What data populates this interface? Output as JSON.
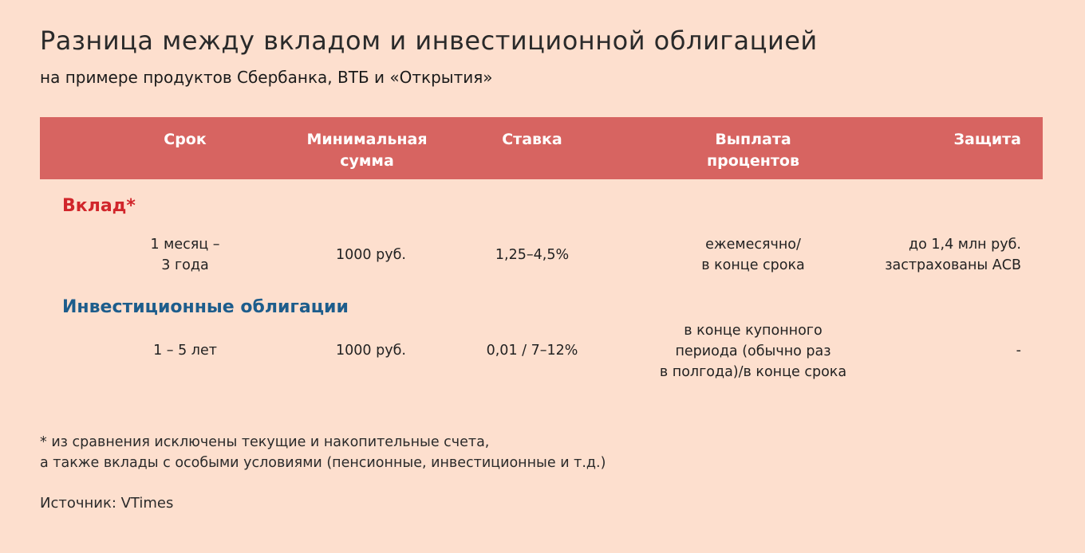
{
  "title": "Разница между вкладом и инвестиционной облигацией",
  "subtitle": "на примере продуктов Сбербанка, ВТБ и «Открытия»",
  "colors": {
    "background": "#fddfce",
    "header": "#d76461",
    "deposit_label": "#d1262b",
    "bonds_label": "#1d5d8c"
  },
  "table": {
    "headers": [
      "Срок",
      "Минимальная\nсумма",
      "Ставка",
      "Выплата\nпроцентов",
      "Защита"
    ],
    "deposit": {
      "label": "Вклад*",
      "term": "1 месяц –\n3 года",
      "min_sum": "1000 руб.",
      "rate": "1,25–4,5%",
      "payment": "ежемесячно/\nв конце срока",
      "protection": "до 1,4 млн руб.\nзастрахованы АСВ"
    },
    "bonds": {
      "label": "Инвестиционные облигации",
      "term": "1 – 5 лет",
      "min_sum": "1000 руб.",
      "rate": "0,01 / 7–12%",
      "payment": "в конце купонного\nпериода (обычно раз\nв полгода)/в конце срока",
      "protection": "-"
    }
  },
  "footnote": "* из сравнения исключены текущие и накопительные счета,\nа также вклады с особыми условиями (пенсионные, инвестиционные и т.д.)",
  "source": "Источник: VTimes"
}
